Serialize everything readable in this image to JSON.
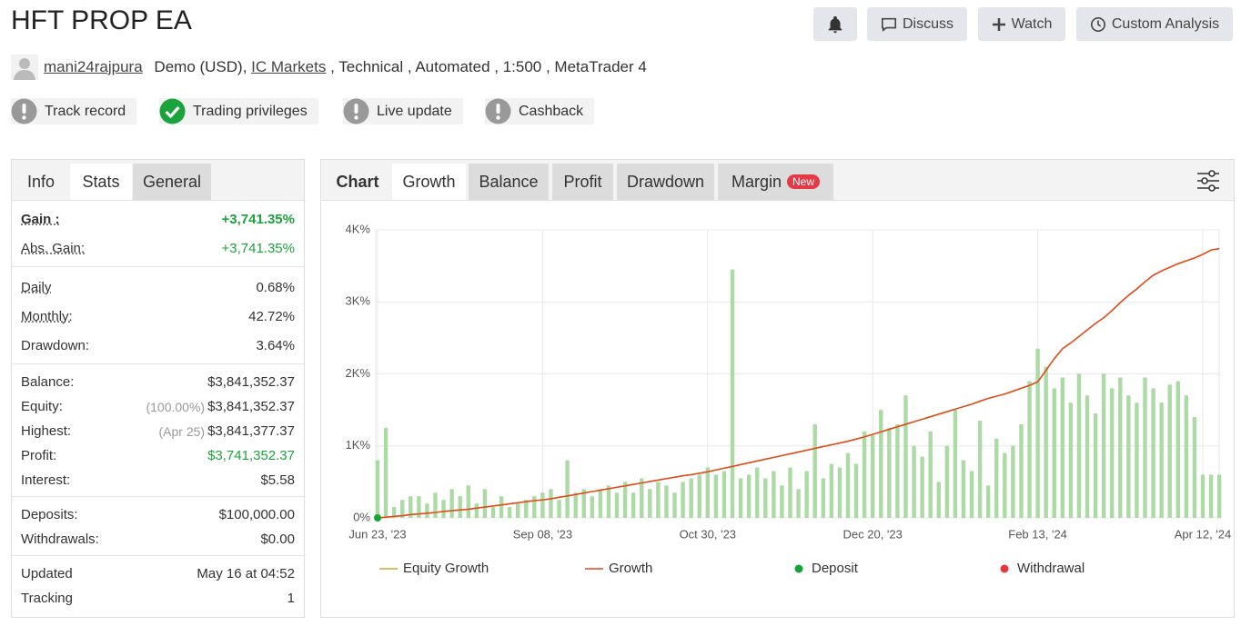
{
  "header": {
    "title": "HFT PROP EA",
    "buttons": [
      "Discuss",
      "Watch",
      "Custom Analysis"
    ]
  },
  "meta": {
    "user": "mani24rajpura",
    "account": "Demo (USD),",
    "broker": "IC Markets",
    "details": ", Technical , Automated , 1:500 , MetaTrader 4"
  },
  "badges": [
    "Track record",
    "Trading privileges",
    "Live update",
    "Cashback"
  ],
  "stats": {
    "tabs": [
      "Info",
      "Stats",
      "General"
    ],
    "groups": [
      {
        "rows": [
          {
            "label": "Gain :",
            "value": "+3,741.35%"
          },
          {
            "label": "Abs. Gain:",
            "value": "+3,741.35%"
          }
        ]
      },
      {
        "rows": [
          {
            "label": "Daily",
            "value": "0.68%"
          },
          {
            "label": "Monthly:",
            "value": "42.72%"
          },
          {
            "label": "Drawdown:",
            "value": "3.64%"
          }
        ]
      },
      {
        "rows": [
          {
            "label": "Balance:",
            "value": "$3,841,352.37"
          },
          {
            "label": "Equity:",
            "note": "(100.00%)",
            "value": "$3,841,352.37"
          },
          {
            "label": "Highest:",
            "note": "(Apr 25)",
            "value": "$3,841,377.37"
          },
          {
            "label": "Profit:",
            "value": "$3,741,352.37"
          },
          {
            "label": "Interest:",
            "value": "$5.58"
          }
        ]
      },
      {
        "rows": [
          {
            "label": "Deposits:",
            "value": "$100,000.00"
          },
          {
            "label": "Withdrawals:",
            "value": "$0.00"
          }
        ]
      },
      {
        "rows": [
          {
            "label": "Updated",
            "value": "May 16 at 04:52"
          },
          {
            "label": "Tracking",
            "value": 1
          }
        ]
      }
    ]
  },
  "chart_tabs": {
    "label": "Chart",
    "tabs": [
      "Growth",
      "Balance",
      "Profit",
      "Drawdown",
      "Margin"
    ],
    "badge": "New"
  },
  "chart_data": {
    "type": "line",
    "grid": true,
    "categories": [
      "Jun 23, '23",
      null,
      null,
      null,
      null,
      null,
      null,
      null,
      null,
      null,
      null,
      null,
      null,
      null,
      null,
      null,
      null,
      null,
      null,
      null,
      "Sep 08, '23",
      null,
      null,
      null,
      null,
      null,
      null,
      null,
      null,
      null,
      null,
      null,
      null,
      null,
      null,
      null,
      null,
      null,
      null,
      null,
      "Oct 30, '23",
      null,
      null,
      null,
      null,
      null,
      null,
      null,
      null,
      null,
      null,
      null,
      null,
      null,
      null,
      null,
      null,
      null,
      null,
      null,
      "Dec 20, '23",
      null,
      null,
      null,
      null,
      null,
      null,
      null,
      null,
      null,
      null,
      null,
      null,
      null,
      null,
      null,
      null,
      null,
      null,
      null,
      "Feb 13, '24",
      null,
      null,
      null,
      null,
      null,
      null,
      null,
      null,
      null,
      null,
      null,
      null,
      null,
      null,
      null,
      null,
      null,
      null,
      null,
      "Apr 12, '24",
      null,
      null
    ],
    "ylim": [
      0,
      4000
    ],
    "yticks": [
      {
        "value": 0,
        "label": "0%"
      },
      {
        "value": 1000,
        "label": "1K%"
      },
      {
        "value": 2000,
        "label": "2K%"
      },
      {
        "value": 3000,
        "label": "3K%"
      },
      {
        "value": 4000,
        "label": "4K%"
      }
    ],
    "bars": {
      "color": "#acdaa4",
      "values": [
        800,
        1250,
        150,
        250,
        300,
        300,
        200,
        350,
        250,
        400,
        300,
        450,
        200,
        400,
        150,
        300,
        150,
        200,
        250,
        300,
        350,
        400,
        250,
        800,
        350,
        400,
        300,
        400,
        450,
        350,
        500,
        350,
        550,
        400,
        500,
        450,
        350,
        500,
        550,
        600,
        700,
        600,
        650,
        3450,
        550,
        600,
        700,
        550,
        650,
        450,
        700,
        400,
        650,
        1300,
        550,
        750,
        700,
        900,
        750,
        1200,
        1150,
        1500,
        1250,
        1300,
        1700,
        1000,
        850,
        1200,
        500,
        1000,
        1500,
        800,
        650,
        1350,
        450,
        1100,
        900,
        1000,
        1300,
        1900,
        2350,
        2100,
        1800,
        1950,
        1600,
        2000,
        1700,
        1450,
        2000,
        1800,
        1950,
        1700,
        1600,
        1950,
        1800,
        1600,
        1850,
        1900,
        1700,
        1400,
        600,
        600,
        600
      ]
    },
    "series": [
      {
        "name": "Equity Growth",
        "style": "line",
        "color": "#d6a52c",
        "values": [
          0,
          10,
          20,
          30,
          45,
          55,
          65,
          75,
          90,
          100,
          110,
          120,
          135,
          150,
          165,
          180,
          195,
          210,
          225,
          240,
          250,
          265,
          285,
          305,
          325,
          345,
          365,
          385,
          405,
          425,
          445,
          465,
          485,
          505,
          525,
          545,
          565,
          585,
          600,
          620,
          640,
          665,
          690,
          715,
          740,
          765,
          790,
          815,
          840,
          865,
          890,
          915,
          940,
          965,
          990,
          1015,
          1040,
          1065,
          1095,
          1125,
          1160,
          1195,
          1230,
          1265,
          1300,
          1335,
          1370,
          1405,
          1440,
          1475,
          1510,
          1545,
          1580,
          1620,
          1660,
          1690,
          1720,
          1760,
          1800,
          1840,
          1890,
          2050,
          2210,
          2350,
          2430,
          2520,
          2610,
          2700,
          2780,
          2880,
          2990,
          3090,
          3180,
          3280,
          3370,
          3430,
          3480,
          3530,
          3570,
          3610,
          3660,
          3720,
          3740
        ]
      },
      {
        "name": "Growth",
        "style": "line",
        "color": "#e4461c",
        "values": [
          0,
          10,
          20,
          30,
          45,
          55,
          65,
          75,
          90,
          100,
          110,
          120,
          135,
          150,
          165,
          180,
          195,
          210,
          225,
          240,
          250,
          265,
          285,
          305,
          325,
          345,
          365,
          385,
          405,
          425,
          445,
          465,
          485,
          505,
          525,
          545,
          565,
          585,
          600,
          620,
          640,
          665,
          690,
          715,
          740,
          765,
          790,
          815,
          840,
          865,
          890,
          915,
          940,
          965,
          990,
          1015,
          1040,
          1065,
          1095,
          1125,
          1160,
          1195,
          1230,
          1265,
          1300,
          1335,
          1370,
          1405,
          1440,
          1475,
          1510,
          1545,
          1580,
          1620,
          1660,
          1690,
          1720,
          1760,
          1800,
          1840,
          1890,
          2050,
          2210,
          2350,
          2430,
          2520,
          2610,
          2700,
          2780,
          2880,
          2990,
          3090,
          3180,
          3280,
          3370,
          3430,
          3480,
          3530,
          3570,
          3610,
          3660,
          3720,
          3740
        ]
      },
      {
        "name": "Deposit",
        "style": "dot",
        "color": "#13a538",
        "values": [
          0,
          null,
          null,
          null,
          null,
          null,
          null,
          null,
          null,
          null,
          null,
          null,
          null,
          null,
          null,
          null,
          null,
          null,
          null,
          null,
          null,
          null,
          null,
          null,
          null,
          null,
          null,
          null,
          null,
          null,
          null,
          null,
          null,
          null,
          null,
          null,
          null,
          null,
          null,
          null,
          null,
          null,
          null,
          null,
          null,
          null,
          null,
          null,
          null,
          null,
          null,
          null,
          null,
          null,
          null,
          null,
          null,
          null,
          null,
          null,
          null,
          null,
          null,
          null,
          null,
          null,
          null,
          null,
          null,
          null,
          null,
          null,
          null,
          null,
          null,
          null,
          null,
          null,
          null,
          null,
          null,
          null,
          null,
          null,
          null,
          null,
          null,
          null,
          null,
          null,
          null,
          null,
          null,
          null,
          null,
          null,
          null,
          null,
          null,
          null,
          null,
          null,
          null
        ]
      },
      {
        "name": "Withdrawal",
        "style": "dot",
        "color": "#e53935",
        "values": [
          null,
          null,
          null,
          null,
          null,
          null,
          null,
          null,
          null,
          null,
          null,
          null,
          null,
          null,
          null,
          null,
          null,
          null,
          null,
          null,
          null,
          null,
          null,
          null,
          null,
          null,
          null,
          null,
          null,
          null,
          null,
          null,
          null,
          null,
          null,
          null,
          null,
          null,
          null,
          null,
          null,
          null,
          null,
          null,
          null,
          null,
          null,
          null,
          null,
          null,
          null,
          null,
          null,
          null,
          null,
          null,
          null,
          null,
          null,
          null,
          null,
          null,
          null,
          null,
          null,
          null,
          null,
          null,
          null,
          null,
          null,
          null,
          null,
          null,
          null,
          null,
          null,
          null,
          null,
          null,
          null,
          null,
          null,
          null,
          null,
          null,
          null,
          null,
          null,
          null,
          null,
          null,
          null,
          null,
          null,
          null,
          null,
          null,
          null,
          null,
          null,
          null,
          null
        ]
      }
    ]
  }
}
